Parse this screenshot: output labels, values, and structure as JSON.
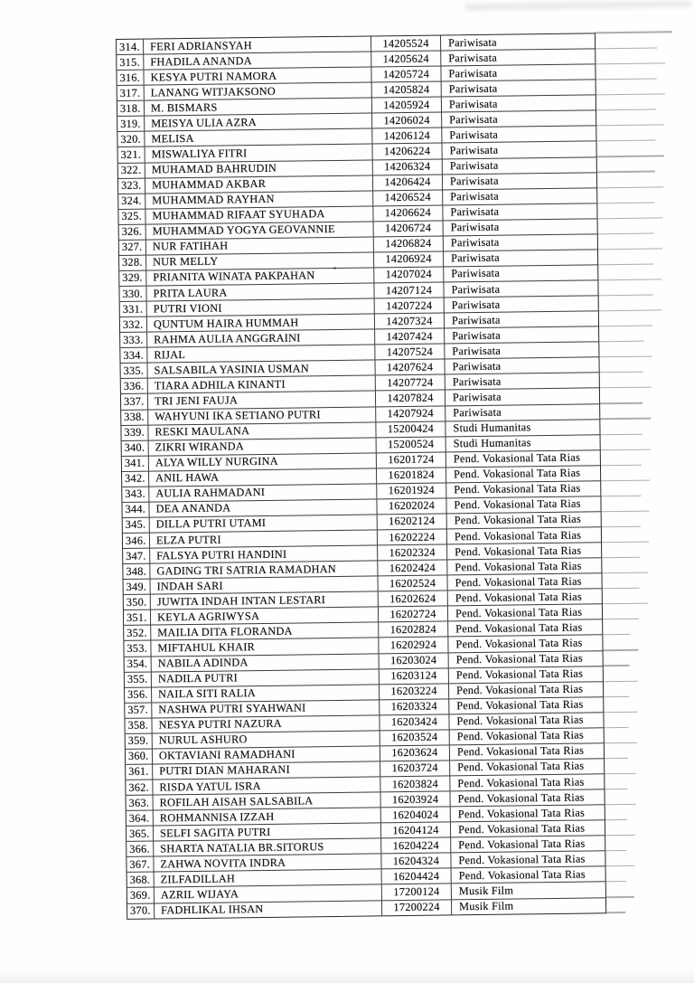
{
  "document": {
    "kind": "scanned student list page",
    "visible_row_range": "314-370"
  },
  "colors": {
    "paper": "#fefefe",
    "ink": "#141414",
    "border": "#262626"
  },
  "table": {
    "columns": [
      "no",
      "name",
      "id",
      "program"
    ],
    "rows": [
      {
        "no": "314.",
        "name": "FERI ADRIANSYAH",
        "id": "14205524",
        "program": "Pariwisata"
      },
      {
        "no": "315.",
        "name": "FHADILA ANANDA",
        "id": "14205624",
        "program": "Pariwisata"
      },
      {
        "no": "316.",
        "name": "KESYA PUTRI NAMORA",
        "id": "14205724",
        "program": "Pariwisata"
      },
      {
        "no": "317.",
        "name": "LANANG WITJAKSONO",
        "id": "14205824",
        "program": "Pariwisata"
      },
      {
        "no": "318.",
        "name": "M. BISMARS",
        "id": "14205924",
        "program": "Pariwisata"
      },
      {
        "no": "319.",
        "name": "MEISYA ULIA AZRA",
        "id": "14206024",
        "program": "Pariwisata"
      },
      {
        "no": "320.",
        "name": "MELISA",
        "id": "14206124",
        "program": "Pariwisata"
      },
      {
        "no": "321.",
        "name": "MISWALIYA FITRI",
        "id": "14206224",
        "program": "Pariwisata"
      },
      {
        "no": "322.",
        "name": "MUHAMAD BAHRUDIN",
        "id": "14206324",
        "program": "Pariwisata"
      },
      {
        "no": "323.",
        "name": "MUHAMMAD AKBAR",
        "id": "14206424",
        "program": "Pariwisata"
      },
      {
        "no": "324.",
        "name": "MUHAMMAD RAYHAN",
        "id": "14206524",
        "program": "Pariwisata"
      },
      {
        "no": "325.",
        "name": "MUHAMMAD RIFAAT SYUHADA",
        "id": "14206624",
        "program": "Pariwisata"
      },
      {
        "no": "326.",
        "name": "MUHAMMAD YOGYA GEOVANNIE",
        "id": "14206724",
        "program": "Pariwisata"
      },
      {
        "no": "327.",
        "name": "NUR FATIHAH",
        "id": "14206824",
        "program": "Pariwisata"
      },
      {
        "no": "328.",
        "name": "NUR MELLY",
        "id": "14206924",
        "program": "Pariwisata"
      },
      {
        "no": "329.",
        "name": "PRIANITA WINATA PAKPAHAN",
        "id": "14207024",
        "program": "Pariwisata"
      },
      {
        "no": "330.",
        "name": "PRITA LAURA",
        "id": "14207124",
        "program": "Pariwisata"
      },
      {
        "no": "331.",
        "name": "PUTRI VIONI",
        "id": "14207224",
        "program": "Pariwisata"
      },
      {
        "no": "332.",
        "name": "QUNTUM HAIRA HUMMAH",
        "id": "14207324",
        "program": "Pariwisata"
      },
      {
        "no": "333.",
        "name": "RAHMA AULIA ANGGRAINI",
        "id": "14207424",
        "program": "Pariwisata"
      },
      {
        "no": "334.",
        "name": "RIJAL",
        "id": "14207524",
        "program": "Pariwisata"
      },
      {
        "no": "335.",
        "name": "SALSABILA YASINIA USMAN",
        "id": "14207624",
        "program": "Pariwisata"
      },
      {
        "no": "336.",
        "name": "TIARA ADHILA KINANTI",
        "id": "14207724",
        "program": "Pariwisata"
      },
      {
        "no": "337.",
        "name": "TRI JENI FAUJA",
        "id": "14207824",
        "program": "Pariwisata"
      },
      {
        "no": "338.",
        "name": "WAHYUNI IKA SETIANO PUTRI",
        "id": "14207924",
        "program": "Pariwisata"
      },
      {
        "no": "339.",
        "name": "RESKI MAULANA",
        "id": "15200424",
        "program": "Studi Humanitas"
      },
      {
        "no": "340.",
        "name": "ZIKRI WIRANDA",
        "id": "15200524",
        "program": "Studi Humanitas"
      },
      {
        "no": "341.",
        "name": "ALYA WILLY NURGINA",
        "id": "16201724",
        "program": "Pend. Vokasional Tata Rias"
      },
      {
        "no": "342.",
        "name": "ANIL HAWA",
        "id": "16201824",
        "program": "Pend. Vokasional Tata Rias"
      },
      {
        "no": "343.",
        "name": "AULIA RAHMADANI",
        "id": "16201924",
        "program": "Pend. Vokasional Tata Rias"
      },
      {
        "no": "344.",
        "name": "DEA ANANDA",
        "id": "16202024",
        "program": "Pend. Vokasional Tata Rias"
      },
      {
        "no": "345.",
        "name": "DILLA PUTRI UTAMI",
        "id": "16202124",
        "program": "Pend. Vokasional Tata Rias"
      },
      {
        "no": "346.",
        "name": "ELZA PUTRI",
        "id": "16202224",
        "program": "Pend. Vokasional Tata Rias"
      },
      {
        "no": "347.",
        "name": "FALSYA PUTRI HANDINI",
        "id": "16202324",
        "program": "Pend. Vokasional Tata Rias"
      },
      {
        "no": "348.",
        "name": "GADING TRI SATRIA RAMADHAN",
        "id": "16202424",
        "program": "Pend. Vokasional Tata Rias"
      },
      {
        "no": "349.",
        "name": "INDAH SARI",
        "id": "16202524",
        "program": "Pend. Vokasional Tata Rias"
      },
      {
        "no": "350.",
        "name": "JUWITA INDAH INTAN LESTARI",
        "id": "16202624",
        "program": "Pend. Vokasional Tata Rias"
      },
      {
        "no": "351.",
        "name": "KEYLA AGRIWYSA",
        "id": "16202724",
        "program": "Pend. Vokasional Tata Rias"
      },
      {
        "no": "352.",
        "name": "MAILIA DITA FLORANDA",
        "id": "16202824",
        "program": "Pend. Vokasional Tata Rias"
      },
      {
        "no": "353.",
        "name": "MIFTAHUL KHAIR",
        "id": "16202924",
        "program": "Pend. Vokasional Tata Rias"
      },
      {
        "no": "354.",
        "name": "NABILA ADINDA",
        "id": "16203024",
        "program": "Pend. Vokasional Tata Rias"
      },
      {
        "no": "355.",
        "name": "NADILA PUTRI",
        "id": "16203124",
        "program": "Pend. Vokasional Tata Rias"
      },
      {
        "no": "356.",
        "name": "NAILA SITI RALIA",
        "id": "16203224",
        "program": "Pend. Vokasional Tata Rias"
      },
      {
        "no": "357.",
        "name": "NASHWA PUTRI SYAHWANI",
        "id": "16203324",
        "program": "Pend. Vokasional Tata Rias"
      },
      {
        "no": "358.",
        "name": "NESYA PUTRI NAZURA",
        "id": "16203424",
        "program": "Pend. Vokasional Tata Rias"
      },
      {
        "no": "359.",
        "name": "NURUL ASHURO",
        "id": "16203524",
        "program": "Pend. Vokasional Tata Rias"
      },
      {
        "no": "360.",
        "name": "OKTAVIANI RAMADHANI",
        "id": "16203624",
        "program": "Pend. Vokasional Tata Rias"
      },
      {
        "no": "361.",
        "name": "PUTRI DIAN MAHARANI",
        "id": "16203724",
        "program": "Pend. Vokasional Tata Rias"
      },
      {
        "no": "362.",
        "name": "RISDA YATUL ISRA",
        "id": "16203824",
        "program": "Pend. Vokasional Tata Rias"
      },
      {
        "no": "363.",
        "name": "ROFILAH AISAH SALSABILA",
        "id": "16203924",
        "program": "Pend. Vokasional Tata Rias"
      },
      {
        "no": "364.",
        "name": "ROHMANNISA IZZAH",
        "id": "16204024",
        "program": "Pend. Vokasional Tata Rias"
      },
      {
        "no": "365.",
        "name": "SELFI SAGITA PUTRI",
        "id": "16204124",
        "program": "Pend. Vokasional Tata Rias"
      },
      {
        "no": "366.",
        "name": "SHARTA NATALIA BR.SITORUS",
        "id": "16204224",
        "program": "Pend. Vokasional Tata Rias"
      },
      {
        "no": "367.",
        "name": "ZAHWA NOVITA INDRA",
        "id": "16204324",
        "program": "Pend. Vokasional Tata Rias"
      },
      {
        "no": "368.",
        "name": "ZILFADILLAH",
        "id": "16204424",
        "program": "Pend. Vokasional Tata Rias"
      },
      {
        "no": "369.",
        "name": "AZRIL WIJAYA",
        "id": "17200124",
        "program": "Musik Film"
      },
      {
        "no": "370.",
        "name": "FADHLIKAL IHSAN",
        "id": "17200224",
        "program": "Musik Film"
      }
    ]
  }
}
